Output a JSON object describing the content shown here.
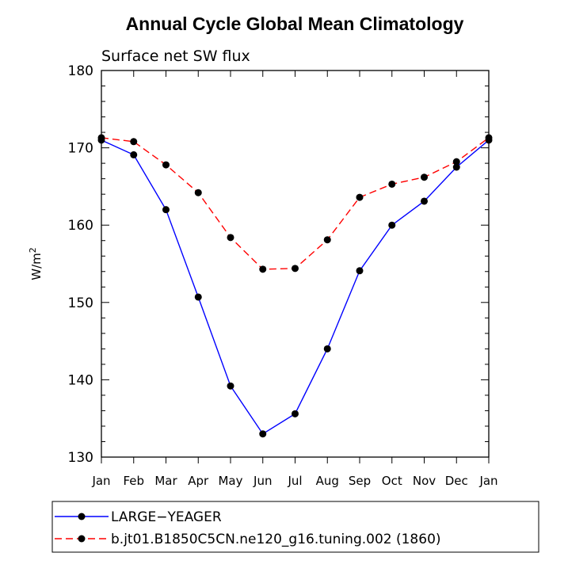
{
  "chart_data": {
    "type": "line",
    "title": "Annual Cycle Global Mean Climatology",
    "subtitle": "Surface net SW flux",
    "ylabel_main": "W/m",
    "ylabel_sup": "2",
    "xlabel": "",
    "categories": [
      "Jan",
      "Feb",
      "Mar",
      "Apr",
      "May",
      "Jun",
      "Jul",
      "Aug",
      "Sep",
      "Oct",
      "Nov",
      "Dec",
      "Jan"
    ],
    "ylim": [
      130,
      180
    ],
    "yticks": [
      130,
      140,
      150,
      160,
      170,
      180
    ],
    "grid": false,
    "legend_position": "bottom",
    "series": [
      {
        "name": "LARGE−YEAGER",
        "color": "#0000ff",
        "dash": "solid",
        "marker": "circle",
        "values": [
          171.0,
          169.1,
          162.0,
          150.7,
          139.2,
          133.0,
          135.6,
          144.0,
          154.1,
          160.0,
          163.1,
          167.5,
          171.0
        ]
      },
      {
        "name": "b.jt01.B1850C5CN.ne120_g16.tuning.002 (1860)",
        "color": "#ff0000",
        "dash": "dashed",
        "marker": "circle",
        "values": [
          171.3,
          170.8,
          167.8,
          164.2,
          158.4,
          154.3,
          154.4,
          158.1,
          163.6,
          165.3,
          166.2,
          168.2,
          171.3
        ]
      }
    ]
  }
}
